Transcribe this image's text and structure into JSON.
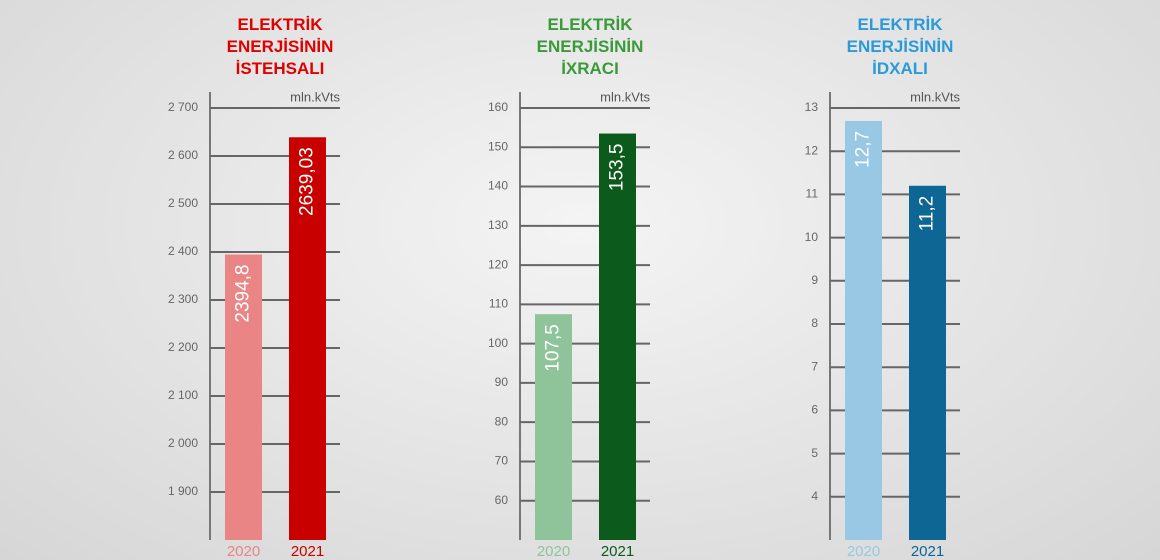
{
  "chart_data": [
    {
      "type": "bar",
      "title": "ELEKTRİK ENERJİSİNİN İSTEHSALI",
      "title_color": "#e00000",
      "unit_label": "mln.kVts",
      "categories": [
        "2020",
        "2021"
      ],
      "colors": [
        "#e98585",
        "#c80000"
      ],
      "values": [
        2394.8,
        2639.03
      ],
      "value_labels": [
        "2394,8",
        "2639,03"
      ],
      "ylim": [
        1800,
        2700
      ],
      "yticks": [
        {
          "value": 1900,
          "label": "1 900"
        },
        {
          "value": 2000,
          "label": "2 000"
        },
        {
          "value": 2100,
          "label": "2 100"
        },
        {
          "value": 2200,
          "label": "2 200"
        },
        {
          "value": 2300,
          "label": "2 300"
        },
        {
          "value": 2400,
          "label": "2 400"
        },
        {
          "value": 2500,
          "label": "2 500"
        },
        {
          "value": 2600,
          "label": "2 600"
        },
        {
          "value": 2700,
          "label": "2 700"
        }
      ],
      "grid": true
    },
    {
      "type": "bar",
      "title": "ELEKTRİK ENERJİSİNİN İXRACI",
      "title_color": "#3a9a3a",
      "unit_label": "mln.kVts",
      "categories": [
        "2020",
        "2021"
      ],
      "colors": [
        "#8fc49a",
        "#0c5a1c"
      ],
      "values": [
        107.5,
        153.5
      ],
      "value_labels": [
        "107,5",
        "153,5"
      ],
      "ylim": [
        50,
        160
      ],
      "yticks": [
        60,
        70,
        80,
        90,
        100,
        110,
        120,
        130,
        140,
        150,
        160
      ],
      "grid": true
    },
    {
      "type": "bar",
      "title": "ELEKTRİK ENERJİSİNİN İDXALI",
      "title_color": "#2a9ad8",
      "unit_label": "mln.kVts",
      "categories": [
        "2020",
        "2021"
      ],
      "colors": [
        "#98c8e4",
        "#0d6694"
      ],
      "values": [
        12.7,
        11.2
      ],
      "value_labels": [
        "12,7",
        "11,2"
      ],
      "ylim": [
        3,
        13
      ],
      "yticks": [
        4,
        5,
        6,
        7,
        8,
        9,
        10,
        11,
        12,
        13
      ],
      "grid": true
    }
  ]
}
